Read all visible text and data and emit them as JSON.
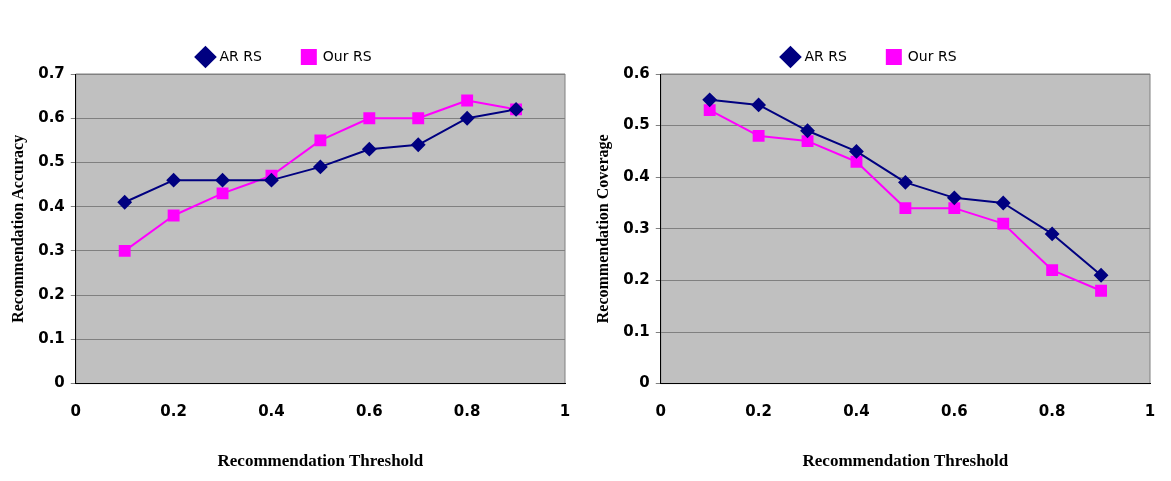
{
  "chart_data": [
    {
      "type": "line",
      "xlabel": "Recommendation Threshold",
      "ylabel": "Recommendation Accuracy",
      "x": [
        0.1,
        0.2,
        0.3,
        0.4,
        0.5,
        0.6,
        0.7,
        0.8,
        0.9
      ],
      "xlim": [
        0,
        1
      ],
      "xticks": [
        0,
        0.2,
        0.4,
        0.6,
        0.8,
        1
      ],
      "ylim": [
        0,
        0.7
      ],
      "yticks": [
        0,
        0.1,
        0.2,
        0.3,
        0.4,
        0.5,
        0.6,
        0.7
      ],
      "grid": "y",
      "legend": "top",
      "line_style": "solid",
      "series": [
        {
          "name": "AR RS",
          "color": "#000080",
          "marker": "diamond",
          "values": [
            0.41,
            0.46,
            0.46,
            0.46,
            0.49,
            0.53,
            0.54,
            0.6,
            0.62
          ]
        },
        {
          "name": "Our RS",
          "color": "#ff00ff",
          "marker": "square",
          "values": [
            0.3,
            0.38,
            0.43,
            0.47,
            0.55,
            0.6,
            0.6,
            0.64,
            0.62
          ]
        }
      ]
    },
    {
      "type": "line",
      "xlabel": "Recommendation Threshold",
      "ylabel": "Recommendation Coverage",
      "x": [
        0.1,
        0.2,
        0.3,
        0.4,
        0.5,
        0.6,
        0.7,
        0.8,
        0.9
      ],
      "xlim": [
        0,
        1
      ],
      "xticks": [
        0,
        0.2,
        0.4,
        0.6,
        0.8,
        1
      ],
      "ylim": [
        0,
        0.6
      ],
      "yticks": [
        0,
        0.1,
        0.2,
        0.3,
        0.4,
        0.5,
        0.6
      ],
      "grid": "y",
      "legend": "top",
      "line_style": "solid",
      "series": [
        {
          "name": "AR RS",
          "color": "#000080",
          "marker": "diamond",
          "values": [
            0.55,
            0.54,
            0.49,
            0.45,
            0.39,
            0.36,
            0.35,
            0.29,
            0.21
          ]
        },
        {
          "name": "Our RS",
          "color": "#ff00ff",
          "marker": "square",
          "values": [
            0.53,
            0.48,
            0.47,
            0.43,
            0.34,
            0.34,
            0.31,
            0.22,
            0.18
          ]
        }
      ]
    }
  ]
}
